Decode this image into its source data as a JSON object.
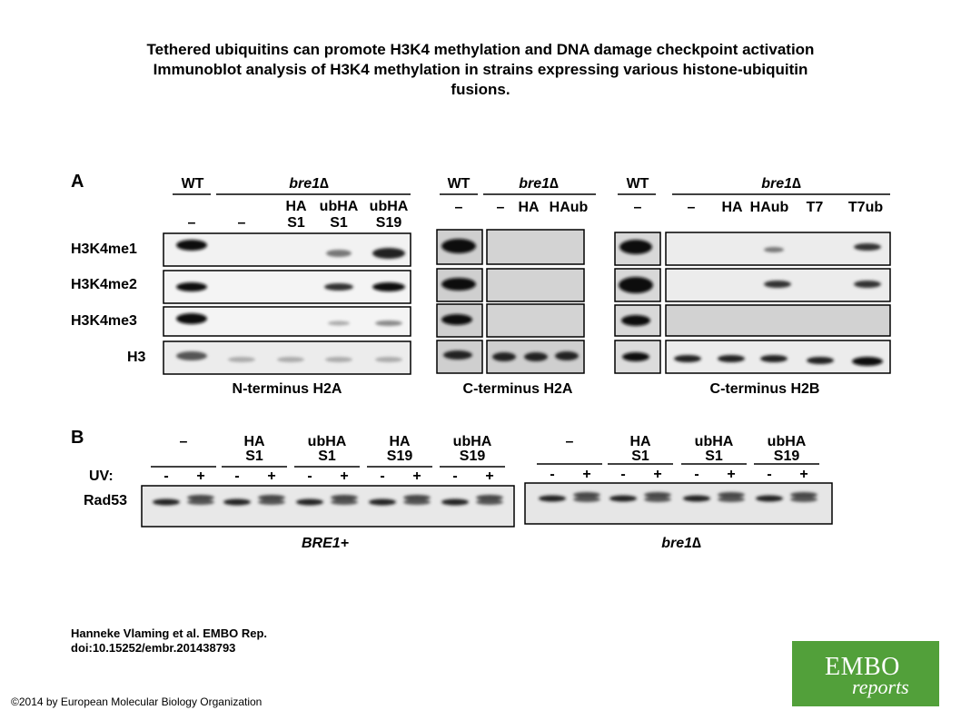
{
  "title": {
    "line1": "Tethered ubiquitins can promote H3K4 methylation and DNA damage checkpoint activation",
    "line2": "Immunoblot analysis of H3K4 methylation in strains expressing various histone-ubiquitin",
    "line3": "fusions."
  },
  "panel_a": {
    "letter": "A",
    "wt": "WT",
    "mutant": "bre1∆",
    "row_labels": [
      "H3K4me1",
      "H3K4me2",
      "H3K4me3",
      "H3"
    ],
    "nterm": {
      "caption": "N-terminus H2A",
      "lanes": [
        {
          "top": "",
          "bottom": "–"
        },
        {
          "top": "",
          "bottom": "–"
        },
        {
          "top": "HA",
          "bottom": "S1"
        },
        {
          "top": "ubHA",
          "bottom": "S1"
        },
        {
          "top": "ubHA",
          "bottom": "S19"
        }
      ]
    },
    "cterm_h2a": {
      "caption": "C-terminus H2A",
      "lanes": [
        "–",
        "–",
        "HA",
        "HAub"
      ]
    },
    "cterm_h2b": {
      "caption": "C-terminus H2B",
      "lanes": [
        "–",
        "–",
        "HA",
        "HAub",
        "T7",
        "T7ub"
      ]
    }
  },
  "panel_b": {
    "letter": "B",
    "uv_label": "UV:",
    "row_label": "Rad53",
    "bre1_plus": {
      "caption": "BRE1+",
      "groups": [
        {
          "l1": "–",
          "l2": ""
        },
        {
          "l1": "HA",
          "l2": "S1"
        },
        {
          "l1": "ubHA",
          "l2": "S1"
        },
        {
          "l1": "HA",
          "l2": "S19"
        },
        {
          "l1": "ubHA",
          "l2": "S19"
        }
      ]
    },
    "bre1_delta": {
      "caption": "bre1∆",
      "groups": [
        {
          "l1": "–",
          "l2": ""
        },
        {
          "l1": "HA",
          "l2": "S1"
        },
        {
          "l1": "ubHA",
          "l2": "S1"
        },
        {
          "l1": "ubHA",
          "l2": "S19"
        }
      ]
    },
    "uv_signs": [
      "-",
      "+"
    ]
  },
  "credits": {
    "line1": "Hanneke Vlaming et al. EMBO Rep.",
    "line2": "doi:10.15252/embr.201438793"
  },
  "copyright": "©2014 by European Molecular Biology Organization",
  "logo": {
    "line1": "EMBO",
    "line2": "reports"
  }
}
